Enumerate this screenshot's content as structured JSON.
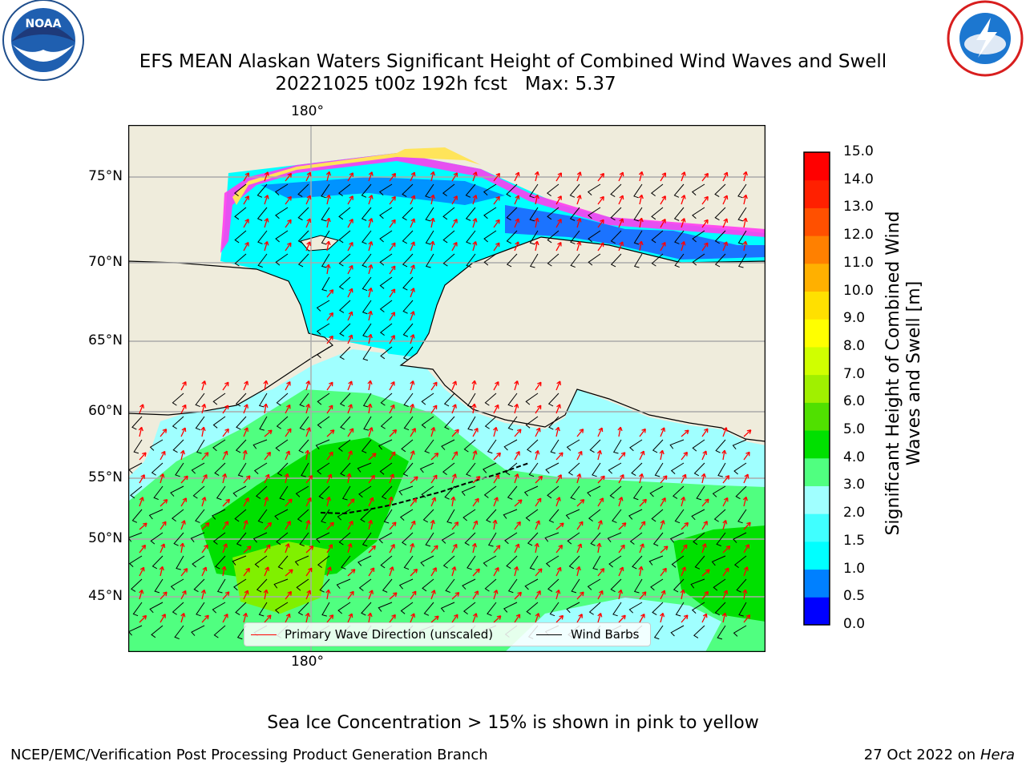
{
  "title": "EFS MEAN Alaskan Waters Significant Height of Combined Wind Waves and Swell",
  "subtitle": "20221025 t00z 192h fcst   Max: 5.37",
  "logos": {
    "left": "NOAA",
    "right": "NATIONAL WEATHER SERVICE",
    "left_icon": "noaa-logo",
    "right_icon": "nws-logo"
  },
  "map": {
    "lon_label": "180°",
    "lat_labels": [
      "75°N",
      "70°N",
      "65°N",
      "60°N",
      "55°N",
      "50°N",
      "45°N"
    ],
    "land_color": "#efecdc",
    "ice_color": "#ff3df0"
  },
  "colorbar": {
    "label": "Significant Height of Combined Wind Waves and Swell [m]",
    "ticks": [
      "0.0",
      "0.5",
      "1.0",
      "1.5",
      "2.0",
      "3.0",
      "4.0",
      "5.0",
      "6.0",
      "7.0",
      "8.0",
      "9.0",
      "10.0",
      "11.0",
      "12.0",
      "13.0",
      "14.0",
      "15.0"
    ],
    "colors": [
      "#0000ff",
      "#0080ff",
      "#00ffff",
      "#40ffff",
      "#a0ffff",
      "#50ff80",
      "#00e000",
      "#50e000",
      "#a0f000",
      "#d0ff00",
      "#ffff00",
      "#ffe000",
      "#ffb000",
      "#ff8000",
      "#ff5000",
      "#ff2000",
      "#ff0000"
    ]
  },
  "legend": [
    {
      "label": "Primary Wave Direction (unscaled)",
      "color": "#ff0000"
    },
    {
      "label": "Wind Barbs",
      "color": "#000000"
    }
  ],
  "footer": {
    "note": "Sea Ice Concentration > 15% is shown in pink to yellow",
    "left": "NCEP/EMC/Verification Post Processing Product Generation Branch",
    "right_text": "27 Oct 2022 on ",
    "right_italic": "Hera"
  }
}
